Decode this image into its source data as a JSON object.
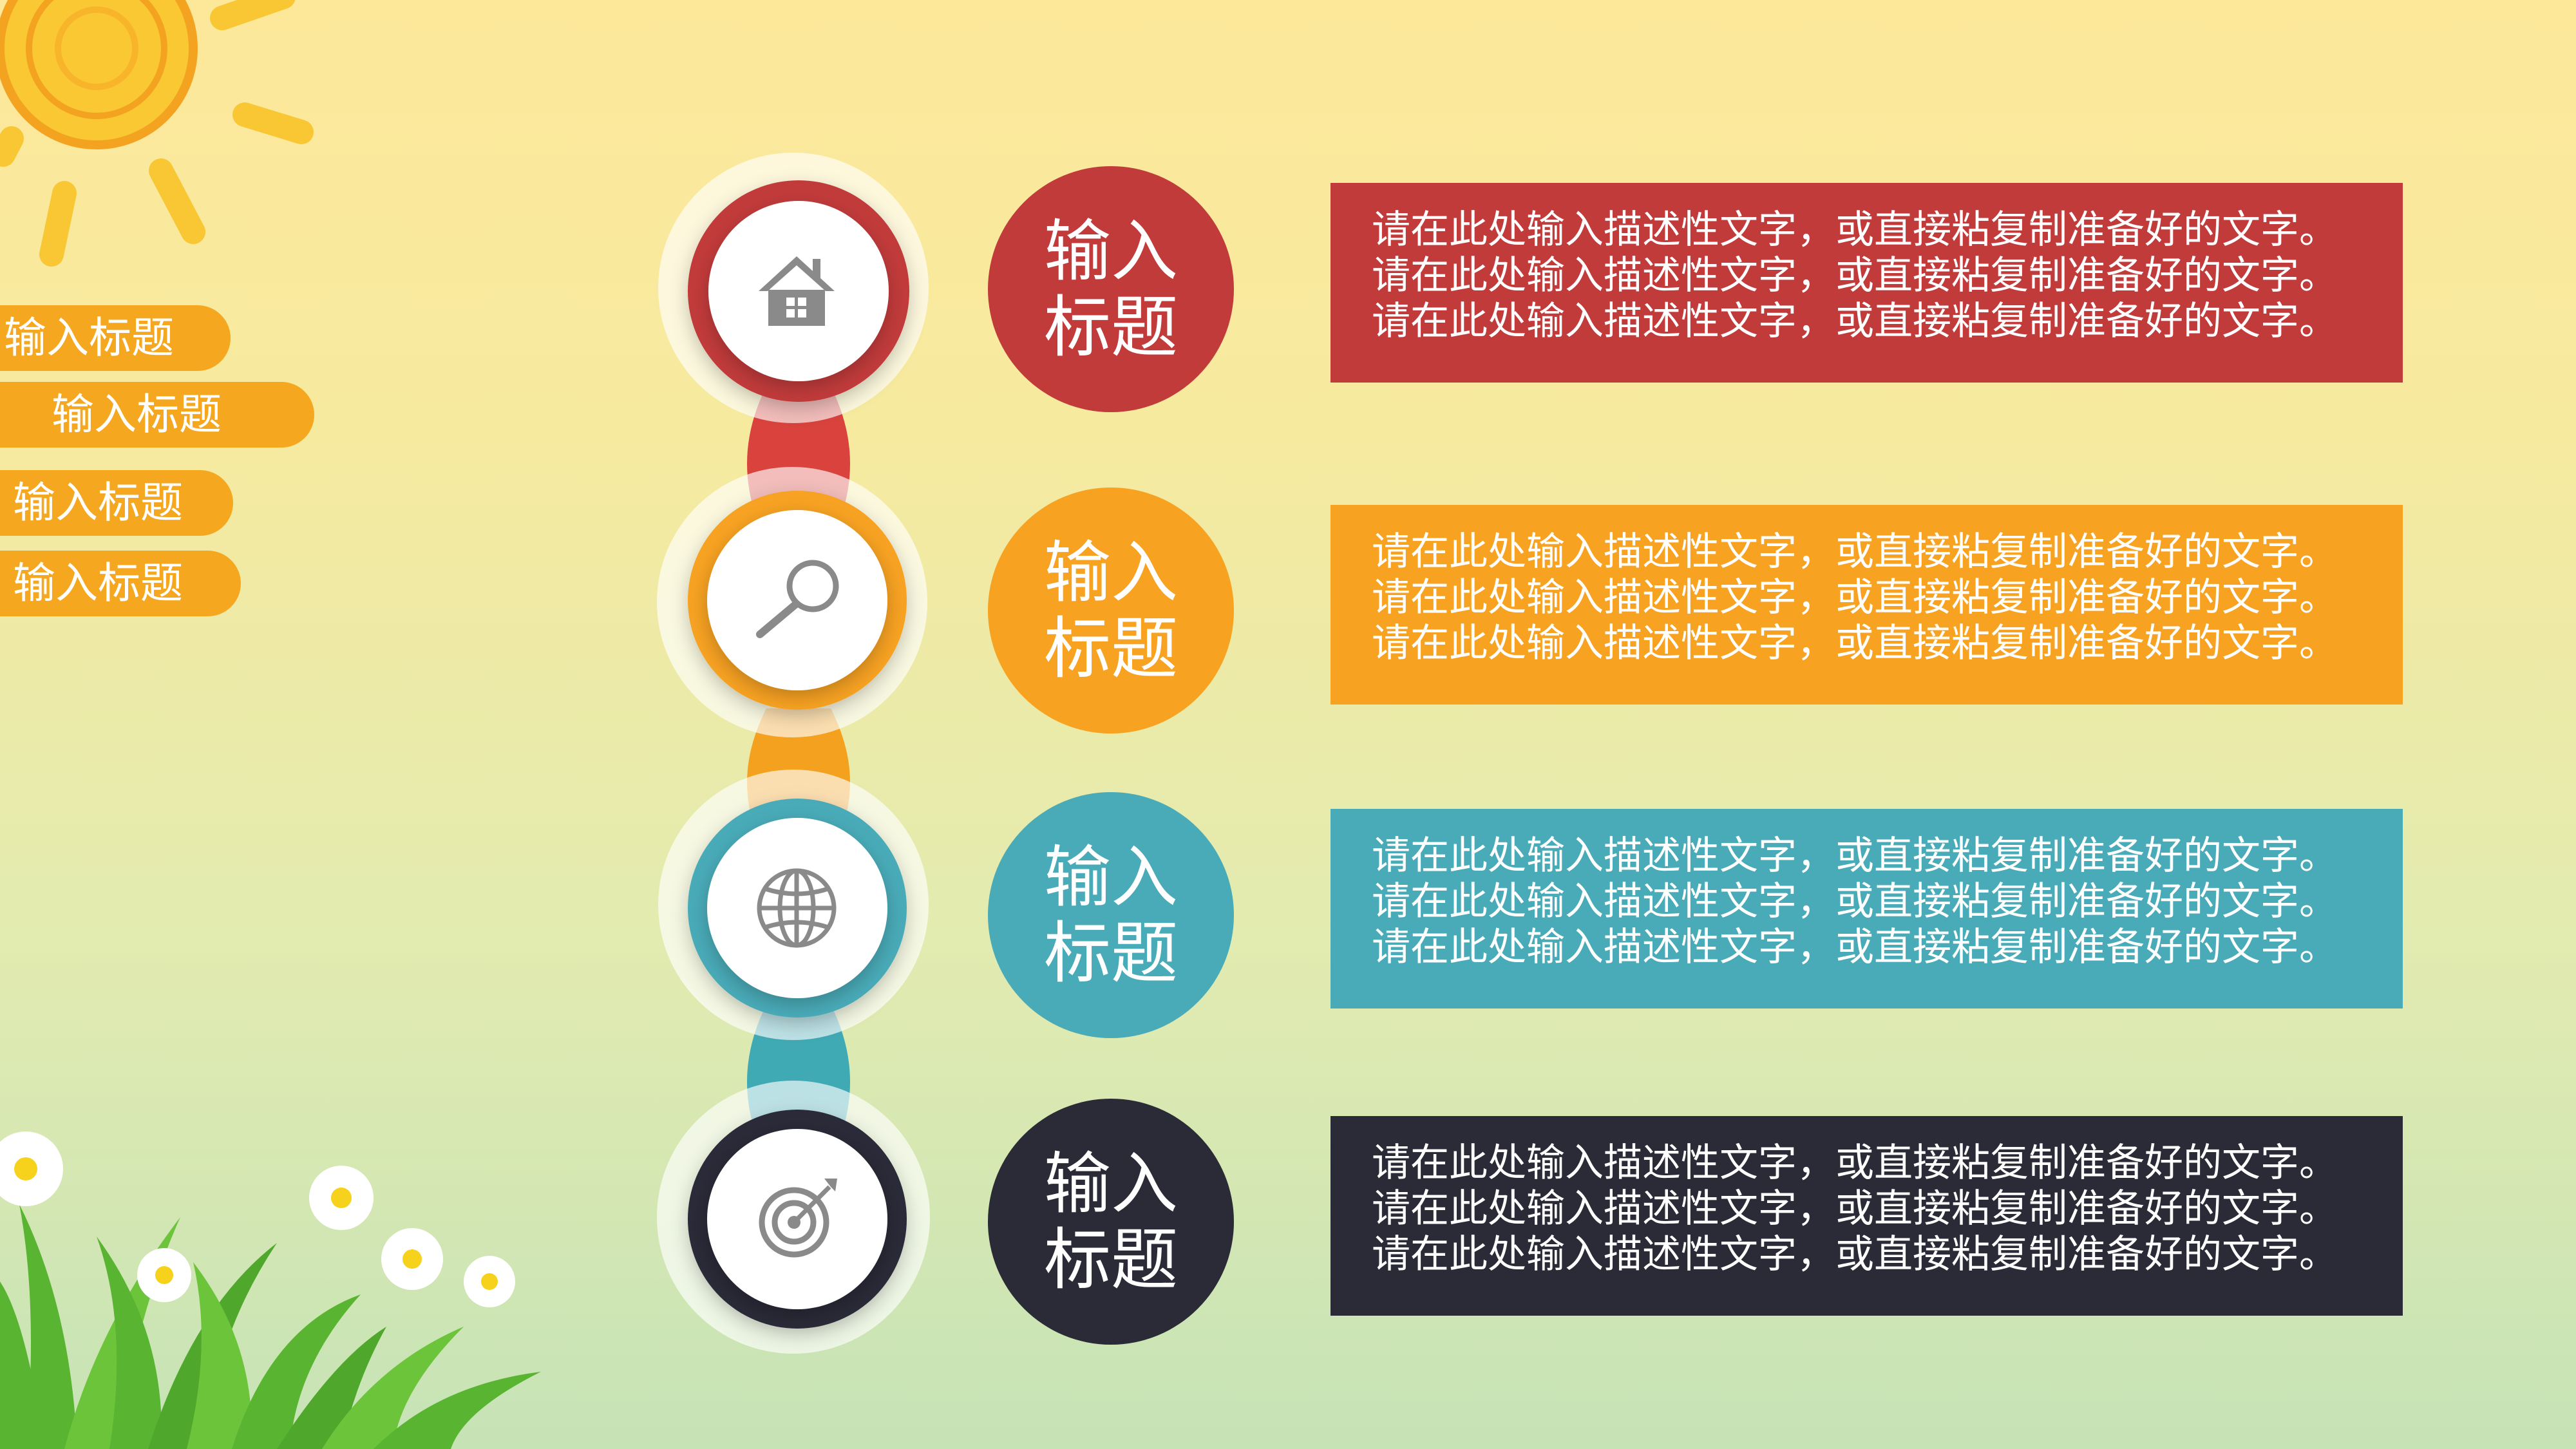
{
  "sidebar": {
    "tabs": [
      {
        "label": "输入标题"
      },
      {
        "label": "输入标题"
      },
      {
        "label": "输入标题"
      },
      {
        "label": "输入标题"
      }
    ]
  },
  "steps": [
    {
      "title": "输入标题",
      "icon": "house-icon",
      "color": "#c23b3b",
      "text": "请在此处输入描述性文字，或直接粘复制准备好的文字。请在此处输入描述性文字，或直接粘复制准备好的文字。请在此处输入描述性文字，或直接粘复制准备好的文字。"
    },
    {
      "title": "输入标题",
      "icon": "magnifier-icon",
      "color": "#f7a221",
      "text": "请在此处输入描述性文字，或直接粘复制准备好的文字。请在此处输入描述性文字，或直接粘复制准备好的文字。请在此处输入描述性文字，或直接粘复制准备好的文字。"
    },
    {
      "title": "输入标题",
      "icon": "globe-icon",
      "color": "#4aabb8",
      "text": "请在此处输入描述性文字，或直接粘复制准备好的文字。请在此处输入描述性文字，或直接粘复制准备好的文字。请在此处输入描述性文字，或直接粘复制准备好的文字。"
    },
    {
      "title": "输入标题",
      "icon": "target-icon",
      "color": "#2b2a37",
      "text": "请在此处输入描述性文字，或直接粘复制准备好的文字。请在此处输入描述性文字，或直接粘复制准备好的文字。请在此处输入描述性文字，或直接粘复制准备好的文字。"
    }
  ],
  "colors": {
    "tab": "#f5a81f",
    "icon": "#8a8a8a"
  }
}
